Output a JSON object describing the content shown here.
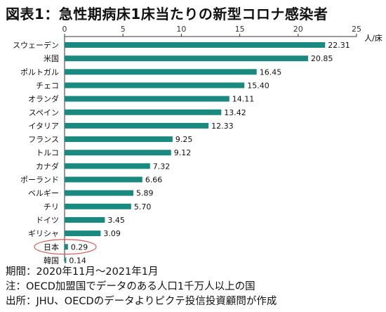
{
  "title": "図表1：急性期病床1床当たりの新型コロナ感染者",
  "unit_label": "人/床",
  "colors": {
    "bar": "#1a8a80",
    "highlight_ring": "#d95a5a",
    "axis": "#333333"
  },
  "chart_data": {
    "type": "bar",
    "orientation": "horizontal",
    "categories": [
      "スウェーデン",
      "米国",
      "ポルトガル",
      "チェコ",
      "オランダ",
      "スペイン",
      "イタリア",
      "フランス",
      "トルコ",
      "カナダ",
      "ポーランド",
      "ベルギー",
      "チリ",
      "ドイツ",
      "ギリシャ",
      "日本",
      "韓国"
    ],
    "values": [
      22.31,
      20.85,
      16.45,
      15.4,
      14.11,
      13.42,
      12.33,
      9.25,
      9.12,
      7.32,
      6.66,
      5.89,
      5.7,
      3.45,
      3.09,
      0.29,
      0.14
    ],
    "value_labels": [
      "22.31",
      "20.85",
      "16.45",
      "15.40",
      "14.11",
      "13.42",
      "12.33",
      "9.25",
      "9.12",
      "7.32",
      "6.66",
      "5.89",
      "5.70",
      "3.45",
      "3.09",
      "0.29",
      "0.14"
    ],
    "xlim": [
      0,
      25
    ],
    "xticks": [
      "0",
      "5",
      "10",
      "15",
      "20",
      "25"
    ],
    "xtick_values": [
      0,
      5,
      10,
      15,
      20,
      25
    ],
    "highlight": "日本",
    "grid": false,
    "axis_position": "top"
  },
  "footnotes": [
    "期間：2020年11月～2021年1月",
    "注：OECD加盟国でデータのある人口1千万人以上の国",
    "出所：JHU、OECDのデータよりピクテ投信投資顧問が作成"
  ]
}
